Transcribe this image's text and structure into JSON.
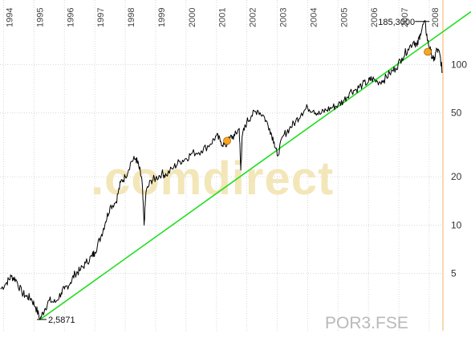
{
  "watermark": ".comdirect",
  "ticker": "POR3.FSE",
  "chart_data": {
    "type": "line",
    "scale": "log",
    "x_tick_labels": [
      "1994",
      "1995",
      "1996",
      "1997",
      "1998",
      "1999",
      "2000",
      "2001",
      "2002",
      "2003",
      "2004",
      "2005",
      "2006",
      "2007",
      "2008"
    ],
    "y_tick_labels": [
      "5",
      "10",
      "20",
      "50",
      "100"
    ],
    "y_ticks": [
      5,
      10,
      20,
      50,
      100
    ],
    "x_range": [
      1993.88,
      2008.45
    ],
    "y_range": [
      2.2,
      230
    ],
    "grid": true,
    "annotations": {
      "max_label": "185,3000",
      "max_point": [
        2007.85,
        185.3
      ],
      "min_label": "2,5871",
      "min_point": [
        1995.2,
        2.5871
      ]
    },
    "trendline": {
      "color": "#22dd22",
      "points": [
        [
          1995.2,
          2.5871
        ],
        [
          2008.45,
          160
        ]
      ]
    },
    "series": [
      {
        "color": "#000000",
        "points": [
          [
            1993.9,
            4.0
          ],
          [
            1994.1,
            4.4
          ],
          [
            1994.25,
            4.8
          ],
          [
            1994.4,
            4.6
          ],
          [
            1994.6,
            3.8
          ],
          [
            1994.75,
            3.6
          ],
          [
            1994.9,
            3.5
          ],
          [
            1995.05,
            3.1
          ],
          [
            1995.2,
            2.6
          ],
          [
            1995.35,
            3.0
          ],
          [
            1995.5,
            3.4
          ],
          [
            1995.7,
            3.3
          ],
          [
            1995.9,
            3.8
          ],
          [
            1996.0,
            4.0
          ],
          [
            1996.2,
            4.4
          ],
          [
            1996.35,
            5.0
          ],
          [
            1996.5,
            5.2
          ],
          [
            1996.7,
            5.8
          ],
          [
            1996.9,
            6.4
          ],
          [
            1997.0,
            6.8
          ],
          [
            1997.2,
            8.5
          ],
          [
            1997.35,
            10.5
          ],
          [
            1997.5,
            13.0
          ],
          [
            1997.7,
            14.0
          ],
          [
            1997.85,
            18.5
          ],
          [
            1998.0,
            20.0
          ],
          [
            1998.2,
            25.0
          ],
          [
            1998.35,
            26.0
          ],
          [
            1998.45,
            23.0
          ],
          [
            1998.55,
            19.0
          ],
          [
            1998.62,
            10.0
          ],
          [
            1998.68,
            16.0
          ],
          [
            1998.85,
            19.0
          ],
          [
            1999.0,
            19.5
          ],
          [
            1999.2,
            21.0
          ],
          [
            1999.35,
            20.5
          ],
          [
            1999.6,
            23.0
          ],
          [
            1999.8,
            25.0
          ],
          [
            2000.0,
            26.0
          ],
          [
            2000.2,
            28.0
          ],
          [
            2000.5,
            29.0
          ],
          [
            2000.8,
            32.0
          ],
          [
            2001.0,
            36.0
          ],
          [
            2001.15,
            33.0
          ],
          [
            2001.3,
            31.0
          ],
          [
            2001.45,
            35.0
          ],
          [
            2001.6,
            36.0
          ],
          [
            2001.75,
            40.0
          ],
          [
            2001.8,
            22.0
          ],
          [
            2001.85,
            36.0
          ],
          [
            2002.0,
            44.0
          ],
          [
            2002.15,
            48.0
          ],
          [
            2002.35,
            52.0
          ],
          [
            2002.55,
            48.0
          ],
          [
            2002.75,
            40.0
          ],
          [
            2002.9,
            33.0
          ],
          [
            2003.0,
            27.0
          ],
          [
            2003.2,
            36.0
          ],
          [
            2003.4,
            40.0
          ],
          [
            2003.6,
            44.0
          ],
          [
            2003.8,
            50.0
          ],
          [
            2004.0,
            54.0
          ],
          [
            2004.2,
            52.0
          ],
          [
            2004.4,
            49.0
          ],
          [
            2004.6,
            52.0
          ],
          [
            2004.8,
            54.0
          ],
          [
            2005.0,
            56.0
          ],
          [
            2005.2,
            60.0
          ],
          [
            2005.4,
            68.0
          ],
          [
            2005.6,
            70.0
          ],
          [
            2005.8,
            75.0
          ],
          [
            2006.0,
            78.0
          ],
          [
            2006.1,
            82.0
          ],
          [
            2006.3,
            78.0
          ],
          [
            2006.5,
            80.0
          ],
          [
            2006.7,
            88.0
          ],
          [
            2006.9,
            95.0
          ],
          [
            2007.1,
            110.0
          ],
          [
            2007.3,
            125.0
          ],
          [
            2007.5,
            140.0
          ],
          [
            2007.6,
            130.0
          ],
          [
            2007.7,
            155.0
          ],
          [
            2007.85,
            185.3
          ],
          [
            2007.95,
            140.0
          ],
          [
            2008.05,
            120.0
          ],
          [
            2008.15,
            105.0
          ],
          [
            2008.25,
            125.0
          ],
          [
            2008.35,
            115.0
          ],
          [
            2008.43,
            90.0
          ]
        ]
      }
    ]
  }
}
